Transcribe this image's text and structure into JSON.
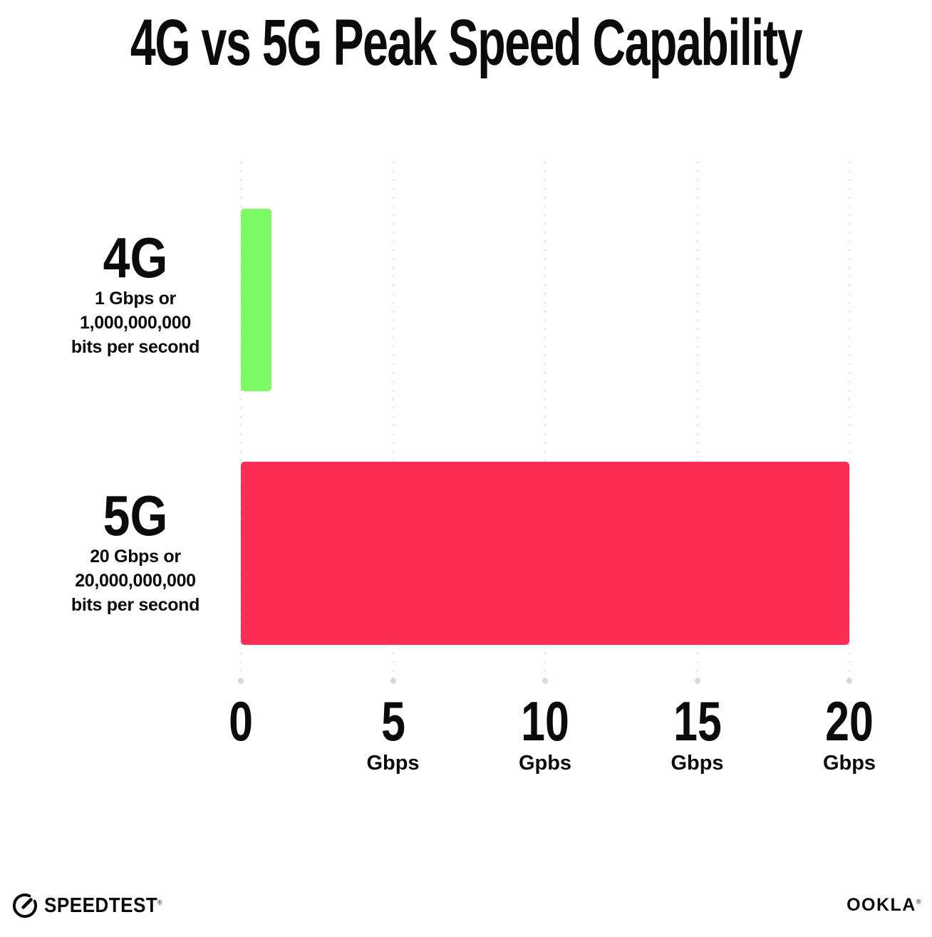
{
  "title": "4G vs 5G Peak Speed Capability",
  "chart_data": {
    "type": "bar",
    "orientation": "horizontal",
    "title": "4G vs 5G Peak Speed Capability",
    "categories": [
      "4G",
      "5G"
    ],
    "values": [
      1,
      20
    ],
    "value_unit": "Gbps",
    "xlim": [
      0,
      20
    ],
    "grid": "vertical-dotted",
    "legend": "none",
    "rows": [
      {
        "name": "4G",
        "value_gbps": 1,
        "description_lines": [
          "1 Gbps or",
          "1,000,000,000",
          "bits per second"
        ],
        "bar_color": "#7CFA63"
      },
      {
        "name": "5G",
        "value_gbps": 20,
        "description_lines": [
          "20 Gbps or",
          "20,000,000,000",
          "bits per second"
        ],
        "bar_color": "#FD2D55"
      }
    ],
    "x_ticks": [
      {
        "label": "0",
        "unit": ""
      },
      {
        "label": "5",
        "unit": "Gbps"
      },
      {
        "label": "10",
        "unit": "Gpbs"
      },
      {
        "label": "15",
        "unit": "Gbps"
      },
      {
        "label": "20",
        "unit": "Gbps"
      }
    ]
  },
  "footer": {
    "speedtest": {
      "icon": "speedtest-gauge-icon",
      "label": "SPEEDTEST",
      "mark": "®"
    },
    "ookla": {
      "label": "OOKLA",
      "mark": "®"
    }
  },
  "colors": {
    "background": "#FFFFFF",
    "text": "#0B0B0B",
    "bar_4g": "#7CFA63",
    "bar_5g": "#FD2D55",
    "gridline_dot": "#E3E3EE"
  }
}
